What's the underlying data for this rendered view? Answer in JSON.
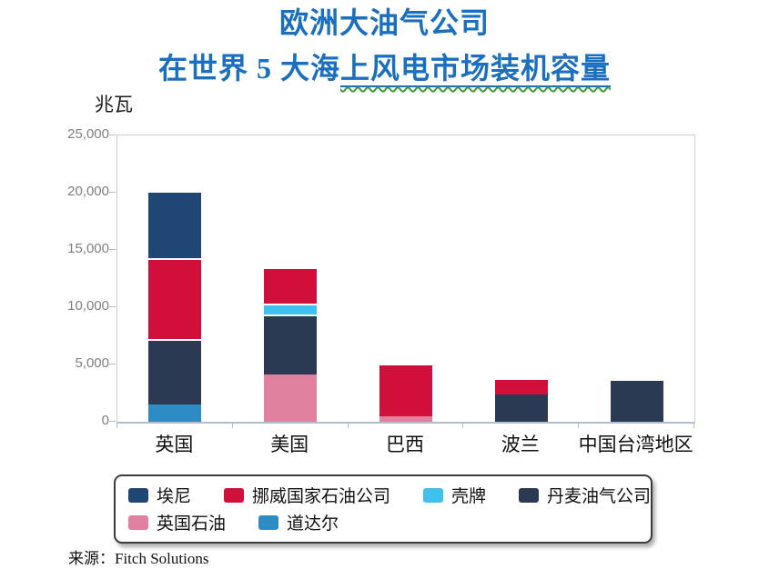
{
  "title": {
    "line1": "欧洲大油气公司",
    "line2_prefix": "在世界 5 大海",
    "line2_underlined": "上风电市场装机容量",
    "color": "#1a6fbe"
  },
  "source": {
    "prefix": "来源：",
    "text": "Fitch Solutions"
  },
  "colors": {
    "title_blue": "#1a6fbe",
    "axis_text_gray": "#808080",
    "axis_line_gray": "#c9cfd6"
  },
  "chart_data": {
    "type": "bar",
    "stacked": true,
    "title": "欧洲大油气公司在世界5大海上风电市场装机容量",
    "ylabel": "兆瓦",
    "xlabel": "",
    "categories": [
      "英国",
      "美国",
      "巴西",
      "波兰",
      "中国台湾地区"
    ],
    "series": [
      {
        "name": "埃尼",
        "color": "#1f4775",
        "values": [
          5900,
          0,
          0,
          0,
          0
        ]
      },
      {
        "name": "挪威国家石油公司",
        "color": "#d0103a",
        "values": [
          7100,
          3200,
          4600,
          1400,
          0
        ]
      },
      {
        "name": "壳牌",
        "color": "#3fc1f0",
        "values": [
          0,
          900,
          0,
          0,
          0
        ]
      },
      {
        "name": "丹麦油气公司",
        "color": "#2b3a52",
        "values": [
          5700,
          5300,
          0,
          2400,
          3600
        ]
      },
      {
        "name": "英国石油",
        "color": "#e2819e",
        "values": [
          0,
          4100,
          500,
          0,
          0
        ]
      },
      {
        "name": "道达尔",
        "color": "#2e8cc5",
        "values": [
          1500,
          0,
          0,
          0,
          0
        ]
      }
    ],
    "stack_order_bottom_to_top": [
      "道达尔",
      "英国石油",
      "丹麦油气公司",
      "壳牌",
      "挪威国家石油公司",
      "埃尼"
    ],
    "category_totals": [
      20200,
      13500,
      5100,
      3800,
      3600
    ],
    "ylim": [
      0,
      25000
    ],
    "yticks": [
      "25,000",
      "20,000",
      "15,000",
      "10,000",
      "5,000",
      "0"
    ],
    "grid": false,
    "legend_position": "bottom",
    "legend_rows": [
      [
        0,
        1,
        2,
        3
      ],
      [
        4,
        5
      ]
    ]
  }
}
